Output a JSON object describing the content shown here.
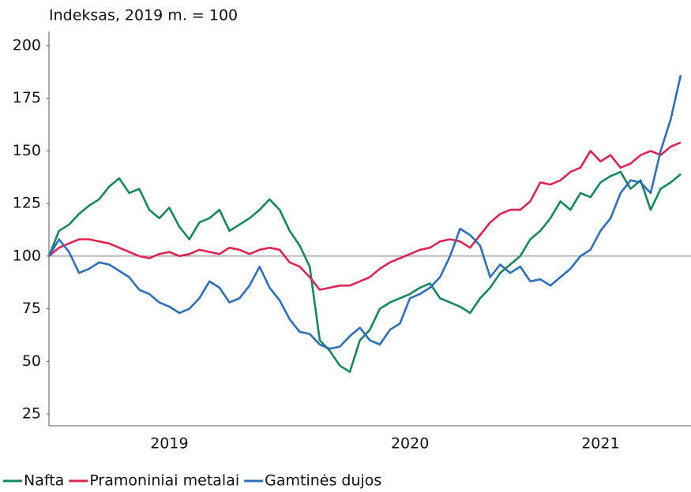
{
  "chart_data": {
    "type": "line",
    "title": "Indeksas, 2019 m. = 100",
    "categories": [
      null,
      null,
      null,
      null,
      null,
      null,
      null,
      null,
      null,
      null,
      null,
      null,
      "2019",
      null,
      null,
      null,
      null,
      null,
      null,
      null,
      null,
      null,
      null,
      null,
      null,
      null,
      null,
      null,
      null,
      null,
      null,
      null,
      null,
      null,
      null,
      null,
      "2020",
      null,
      null,
      null,
      null,
      null,
      null,
      null,
      null,
      null,
      null,
      null,
      null,
      null,
      null,
      null,
      null,
      null,
      null,
      "2021",
      null,
      null,
      null,
      null,
      null,
      null,
      null,
      null
    ],
    "series": [
      {
        "name": "Nafta",
        "color": "#128a5c",
        "values": [
          100,
          112,
          115,
          120,
          124,
          127,
          133,
          137,
          130,
          132,
          122,
          118,
          123,
          114,
          108,
          116,
          118,
          122,
          112,
          115,
          118,
          122,
          127,
          122,
          112,
          105,
          95,
          60,
          55,
          48,
          45,
          60,
          65,
          75,
          78,
          80,
          82,
          85,
          87,
          80,
          78,
          76,
          73,
          80,
          85,
          92,
          96,
          100,
          108,
          112,
          118,
          126,
          122,
          130,
          128,
          135,
          138,
          140,
          132,
          136,
          122,
          132,
          135,
          139
        ]
      },
      {
        "name": "Pramoniniai metalai",
        "color": "#e2234f",
        "values": [
          100,
          104,
          106,
          108,
          108,
          107,
          106,
          104,
          102,
          100,
          99,
          101,
          102,
          100,
          101,
          103,
          102,
          101,
          104,
          103,
          101,
          103,
          104,
          103,
          97,
          95,
          90,
          84,
          85,
          86,
          86,
          88,
          90,
          94,
          97,
          99,
          101,
          103,
          104,
          107,
          108,
          107,
          104,
          110,
          116,
          120,
          122,
          122,
          126,
          135,
          134,
          136,
          140,
          142,
          150,
          145,
          148,
          142,
          144,
          148,
          150,
          148,
          152,
          154
        ]
      },
      {
        "name": "Gamtinės dujos",
        "color": "#2a70be",
        "values": [
          100,
          108,
          102,
          92,
          94,
          97,
          96,
          93,
          90,
          84,
          82,
          78,
          76,
          73,
          75,
          80,
          88,
          85,
          78,
          80,
          86,
          95,
          85,
          79,
          70,
          64,
          63,
          58,
          56,
          57,
          62,
          66,
          60,
          58,
          65,
          68,
          80,
          82,
          85,
          90,
          100,
          113,
          110,
          105,
          90,
          96,
          92,
          95,
          88,
          89,
          86,
          90,
          94,
          100,
          103,
          112,
          118,
          130,
          136,
          135,
          130,
          150,
          165,
          186
        ]
      }
    ],
    "hline": 100,
    "ylim": [
      19.4,
      206.7
    ],
    "yticks": [
      25,
      50,
      75,
      100,
      125,
      150,
      175,
      200
    ]
  }
}
